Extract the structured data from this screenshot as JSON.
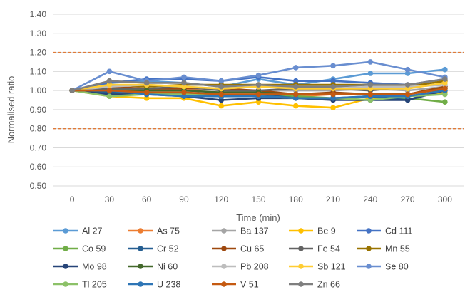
{
  "chart_data": {
    "type": "line",
    "xlabel": "Time (min)",
    "ylabel": "Normalised ratio",
    "x": [
      0,
      30,
      60,
      90,
      120,
      150,
      180,
      210,
      240,
      270,
      300
    ],
    "ylim": [
      0.5,
      1.4
    ],
    "yticks": [
      "0.50",
      "0.60",
      "0.70",
      "0.80",
      "0.90",
      "1.00",
      "1.10",
      "1.20",
      "1.30",
      "1.40"
    ],
    "grid": true,
    "legend_position": "bottom",
    "reference_lines": [
      {
        "y": 1.2,
        "color": "#E07B39",
        "style": "dashed"
      },
      {
        "y": 0.8,
        "color": "#E07B39",
        "style": "dashed"
      }
    ],
    "series": [
      {
        "name": "Al 27",
        "color": "#5B9BD5",
        "values": [
          1.0,
          1.04,
          1.05,
          1.04,
          1.02,
          1.06,
          1.03,
          1.06,
          1.09,
          1.09,
          1.11
        ]
      },
      {
        "name": "As 75",
        "color": "#ED7D31",
        "values": [
          1.0,
          1.01,
          0.99,
          0.98,
          0.97,
          0.98,
          0.97,
          0.98,
          0.98,
          0.98,
          1.02
        ]
      },
      {
        "name": "Ba 137",
        "color": "#A5A5A5",
        "values": [
          1.0,
          1.0,
          1.01,
          1.0,
          0.99,
          1.0,
          1.0,
          1.0,
          1.01,
          1.0,
          1.02
        ]
      },
      {
        "name": "Be 9",
        "color": "#FFC000",
        "values": [
          1.0,
          0.97,
          0.96,
          0.96,
          0.92,
          0.94,
          0.92,
          0.91,
          0.96,
          0.97,
          0.99
        ]
      },
      {
        "name": "Cd 111",
        "color": "#4472C4",
        "values": [
          1.0,
          1.04,
          1.06,
          1.06,
          1.05,
          1.07,
          1.05,
          1.05,
          1.04,
          1.03,
          1.06
        ]
      },
      {
        "name": "Co 59",
        "color": "#70AD47",
        "values": [
          1.0,
          0.98,
          0.99,
          0.98,
          0.98,
          0.97,
          0.97,
          0.96,
          0.95,
          0.96,
          0.94
        ]
      },
      {
        "name": "Cr 52",
        "color": "#255E91",
        "values": [
          1.0,
          0.99,
          0.99,
          0.98,
          0.97,
          0.98,
          0.96,
          0.96,
          0.97,
          0.95,
          1.01
        ]
      },
      {
        "name": "Cu 65",
        "color": "#9E480E",
        "values": [
          1.0,
          1.02,
          1.01,
          1.01,
          1.01,
          1.0,
          0.98,
          0.99,
          0.98,
          0.98,
          1.02
        ]
      },
      {
        "name": "Fe 54",
        "color": "#636363",
        "values": [
          1.0,
          1.01,
          1.01,
          1.02,
          1.0,
          1.0,
          1.01,
          1.01,
          1.0,
          1.02,
          1.03
        ]
      },
      {
        "name": "Mn 55",
        "color": "#997300",
        "values": [
          1.0,
          1.03,
          1.02,
          1.03,
          1.03,
          1.03,
          1.03,
          1.03,
          1.03,
          1.02,
          1.05
        ]
      },
      {
        "name": "Mo 98",
        "color": "#264478",
        "values": [
          1.0,
          0.98,
          0.98,
          0.97,
          0.95,
          0.96,
          0.96,
          0.95,
          0.95,
          0.95,
          1.0
        ]
      },
      {
        "name": "Ni 60",
        "color": "#43682B",
        "values": [
          1.0,
          1.0,
          1.0,
          1.0,
          0.99,
          0.99,
          0.98,
          0.98,
          0.98,
          0.98,
          1.01
        ]
      },
      {
        "name": "Pb 208",
        "color": "#BDBDBD",
        "values": [
          1.0,
          1.02,
          1.03,
          1.02,
          1.01,
          1.02,
          1.02,
          1.01,
          1.02,
          1.02,
          1.03
        ]
      },
      {
        "name": "Sb 121",
        "color": "#FFCD33",
        "values": [
          1.0,
          1.03,
          1.03,
          1.02,
          1.01,
          1.02,
          1.01,
          1.01,
          1.01,
          1.01,
          1.04
        ]
      },
      {
        "name": "Se 80",
        "color": "#698ED0",
        "values": [
          1.0,
          1.1,
          1.05,
          1.07,
          1.05,
          1.08,
          1.12,
          1.13,
          1.15,
          1.11,
          1.07
        ]
      },
      {
        "name": "Tl 205",
        "color": "#8CC168",
        "values": [
          1.0,
          0.97,
          0.98,
          0.98,
          0.97,
          0.97,
          0.96,
          0.96,
          0.95,
          0.97,
          0.98
        ]
      },
      {
        "name": "U 238",
        "color": "#2E75B6",
        "values": [
          1.0,
          1.0,
          0.98,
          0.97,
          0.97,
          0.97,
          0.96,
          0.96,
          0.97,
          0.97,
          1.0
        ]
      },
      {
        "name": "V 51",
        "color": "#C55A11",
        "values": [
          1.0,
          1.0,
          0.99,
          0.99,
          0.98,
          0.98,
          0.98,
          0.98,
          0.98,
          0.98,
          1.01
        ]
      },
      {
        "name": "Zn 66",
        "color": "#7F7F7F",
        "values": [
          1.0,
          1.05,
          1.04,
          1.04,
          1.02,
          1.03,
          1.02,
          1.02,
          1.03,
          1.03,
          1.06
        ]
      }
    ]
  }
}
